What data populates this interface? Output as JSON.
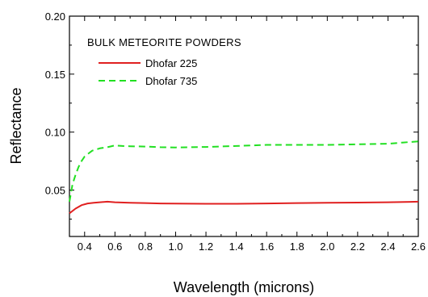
{
  "chart_data": {
    "type": "line",
    "title": "",
    "annotation": "BULK  METEORITE  POWDERS",
    "xlabel": "Wavelength (microns)",
    "ylabel": "Reflectance",
    "xlim": [
      0.3,
      2.6
    ],
    "ylim": [
      0.01,
      0.2
    ],
    "xticks": [
      0.4,
      0.6,
      0.8,
      1.0,
      1.2,
      1.4,
      1.6,
      1.8,
      2.0,
      2.2,
      2.4,
      2.6
    ],
    "xtick_labels": [
      "0.4",
      "0.6",
      "0.8",
      "1.0",
      "1.2",
      "1.4",
      "1.6",
      "1.8",
      "2.0",
      "2.2",
      "2.4",
      "2.6"
    ],
    "yticks": [
      0.05,
      0.1,
      0.15,
      0.2
    ],
    "ytick_labels": [
      "0.05",
      "0.10",
      "0.15",
      "0.20"
    ],
    "grid": false,
    "legend_position": "top-left",
    "series": [
      {
        "name": "Dhofar 225",
        "color": "#e02020",
        "style": "solid",
        "x": [
          0.3,
          0.34,
          0.38,
          0.42,
          0.46,
          0.5,
          0.55,
          0.6,
          0.7,
          0.8,
          0.9,
          1.0,
          1.2,
          1.4,
          1.6,
          1.8,
          2.0,
          2.2,
          2.4,
          2.6
        ],
        "y": [
          0.03,
          0.034,
          0.037,
          0.0385,
          0.039,
          0.0395,
          0.04,
          0.0395,
          0.039,
          0.0388,
          0.0385,
          0.0383,
          0.0382,
          0.0382,
          0.0385,
          0.0388,
          0.039,
          0.0392,
          0.0395,
          0.04
        ]
      },
      {
        "name": "Dhofar 735",
        "color": "#22e022",
        "style": "dashed",
        "x": [
          0.3,
          0.32,
          0.34,
          0.36,
          0.38,
          0.4,
          0.42,
          0.45,
          0.5,
          0.55,
          0.6,
          0.65,
          0.7,
          0.8,
          0.9,
          1.0,
          1.1,
          1.2,
          1.4,
          1.5,
          1.6,
          1.8,
          2.0,
          2.2,
          2.4,
          2.5,
          2.6
        ],
        "y": [
          0.04,
          0.055,
          0.063,
          0.07,
          0.075,
          0.079,
          0.081,
          0.084,
          0.086,
          0.087,
          0.0885,
          0.088,
          0.0878,
          0.0875,
          0.087,
          0.0868,
          0.087,
          0.0872,
          0.088,
          0.0885,
          0.089,
          0.089,
          0.089,
          0.0895,
          0.09,
          0.091,
          0.092
        ]
      }
    ]
  }
}
